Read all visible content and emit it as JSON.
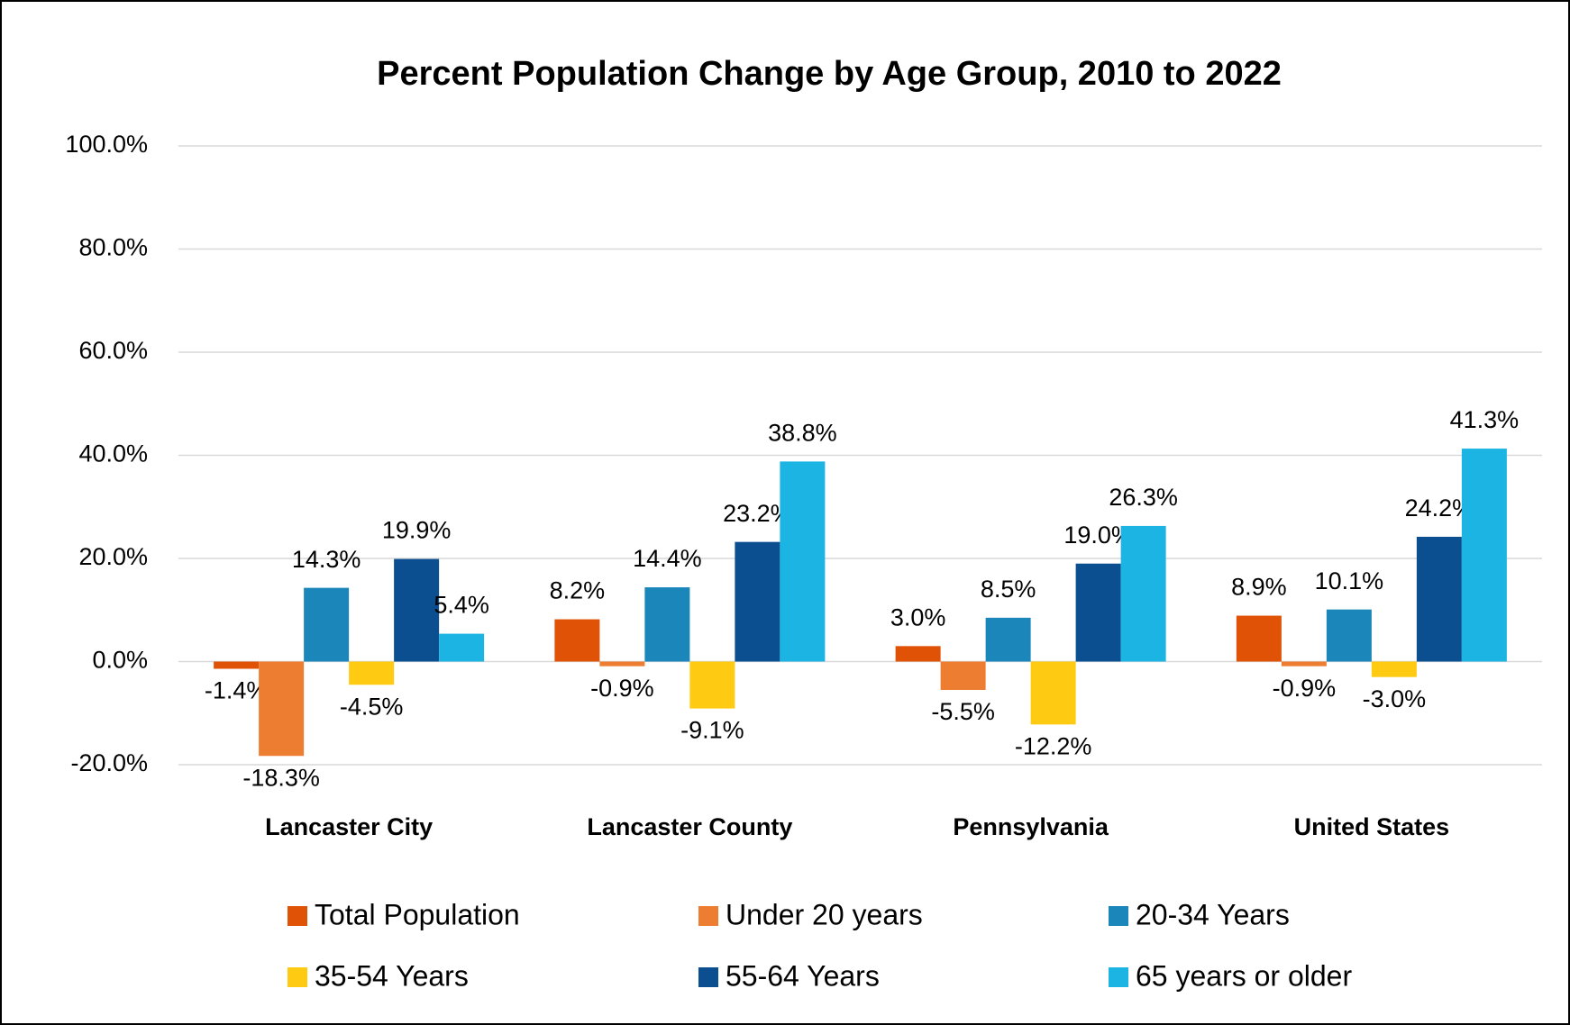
{
  "chart_data": {
    "type": "bar",
    "title": "Percent Population Change by Age Group, 2010 to 2022",
    "categories": [
      "Lancaster City",
      "Lancaster County",
      "Pennsylvania",
      "United States"
    ],
    "series": [
      {
        "name": "Total Population",
        "color": "#e05206",
        "values": [
          -1.4,
          8.2,
          3.0,
          8.9
        ],
        "value_labels": [
          "-1.4%",
          "8.2%",
          "3.0%",
          "8.9%"
        ]
      },
      {
        "name": "Under 20 years",
        "color": "#ed7d31",
        "values": [
          -18.3,
          -0.9,
          -5.5,
          -0.9
        ],
        "value_labels": [
          "-18.3%",
          "-0.9%",
          "-5.5%",
          "-0.9%"
        ]
      },
      {
        "name": "20-34 Years",
        "color": "#1a86ba",
        "values": [
          14.3,
          14.4,
          8.5,
          10.1
        ],
        "value_labels": [
          "14.3%",
          "14.4%",
          "8.5%",
          "10.1%"
        ]
      },
      {
        "name": "35-54 Years",
        "color": "#ffca12",
        "values": [
          -4.5,
          -9.1,
          -12.2,
          -3.0
        ],
        "value_labels": [
          "-4.5%",
          "-9.1%",
          "-12.2%",
          "-3.0%"
        ]
      },
      {
        "name": "55-64 Years",
        "color": "#0b4f91",
        "values": [
          19.9,
          23.2,
          19.0,
          24.2
        ],
        "value_labels": [
          "19.9%",
          "23.2%",
          "19.0%",
          "24.2%"
        ]
      },
      {
        "name": "65 years or older",
        "color": "#1cb4e3",
        "values": [
          5.4,
          38.8,
          26.3,
          41.3
        ],
        "value_labels": [
          "5.4%",
          "38.8%",
          "26.3%",
          "41.3%"
        ]
      }
    ],
    "ylim": [
      -20,
      100
    ],
    "yticks": [
      {
        "value": -20,
        "label": "-20.0%"
      },
      {
        "value": 0,
        "label": "0.0%"
      },
      {
        "value": 20,
        "label": "20.0%"
      },
      {
        "value": 40,
        "label": "40.0%"
      },
      {
        "value": 60,
        "label": "60.0%"
      },
      {
        "value": 80,
        "label": "80.0%"
      },
      {
        "value": 100,
        "label": "100.0%"
      }
    ],
    "grid": true
  }
}
